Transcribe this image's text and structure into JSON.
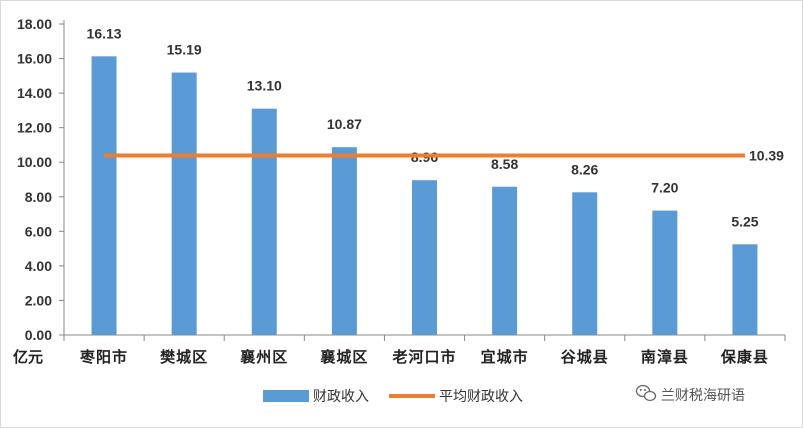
{
  "chart_data": {
    "type": "bar",
    "ylabel": "亿元",
    "ylim": [
      0,
      18
    ],
    "yticks": [
      "0.00",
      "2.00",
      "4.00",
      "6.00",
      "8.00",
      "10.00",
      "12.00",
      "14.00",
      "16.00",
      "18.00"
    ],
    "categories": [
      "枣阳市",
      "樊城区",
      "襄州区",
      "襄城区",
      "老河口市",
      "宜城市",
      "谷城县",
      "南漳县",
      "保康县"
    ],
    "series": [
      {
        "name": "财政收入",
        "kind": "bar",
        "color": "#5b9bd5",
        "values": [
          16.13,
          15.19,
          13.1,
          10.87,
          8.96,
          8.58,
          8.26,
          7.2,
          5.25
        ],
        "labels": [
          "16.13",
          "15.19",
          "13.10",
          "10.87",
          "8.96",
          "8.58",
          "8.26",
          "7.20",
          "5.25"
        ]
      },
      {
        "name": "平均财政收入",
        "kind": "line",
        "color": "#ed7d31",
        "value": 10.39,
        "label": "10.39"
      }
    ],
    "grid": false,
    "legend_position": "bottom-center"
  },
  "watermark": {
    "text": "兰财税海研语",
    "icon": "wechat-icon"
  }
}
